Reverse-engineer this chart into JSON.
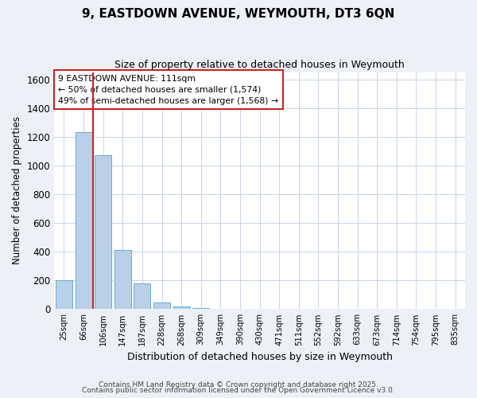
{
  "title_line1": "9, EASTDOWN AVENUE, WEYMOUTH, DT3 6QN",
  "title_line2": "Size of property relative to detached houses in Weymouth",
  "xlabel": "Distribution of detached houses by size in Weymouth",
  "ylabel": "Number of detached properties",
  "categories": [
    "25sqm",
    "66sqm",
    "106sqm",
    "147sqm",
    "187sqm",
    "228sqm",
    "268sqm",
    "309sqm",
    "349sqm",
    "390sqm",
    "430sqm",
    "471sqm",
    "511sqm",
    "552sqm",
    "592sqm",
    "633sqm",
    "673sqm",
    "714sqm",
    "754sqm",
    "795sqm",
    "835sqm"
  ],
  "values": [
    200,
    1230,
    1070,
    415,
    180,
    45,
    20,
    10,
    2,
    0,
    0,
    0,
    0,
    0,
    0,
    0,
    0,
    0,
    0,
    0,
    0
  ],
  "bar_color": "#b8d0e8",
  "bar_edge_color": "#6aaad4",
  "red_line_x": 1.5,
  "annotation_box_text": "9 EASTDOWN AVENUE: 111sqm\n← 50% of detached houses are smaller (1,574)\n49% of semi-detached houses are larger (1,568) →",
  "ylim": [
    0,
    1650
  ],
  "yticks": [
    0,
    200,
    400,
    600,
    800,
    1000,
    1200,
    1400,
    1600
  ],
  "bg_color": "#edf0f7",
  "plot_bg_color": "#ffffff",
  "grid_color": "#c8d4e8",
  "footer_line1": "Contains HM Land Registry data © Crown copyright and database right 2025.",
  "footer_line2": "Contains public sector information licensed under the Open Government Licence v3.0."
}
